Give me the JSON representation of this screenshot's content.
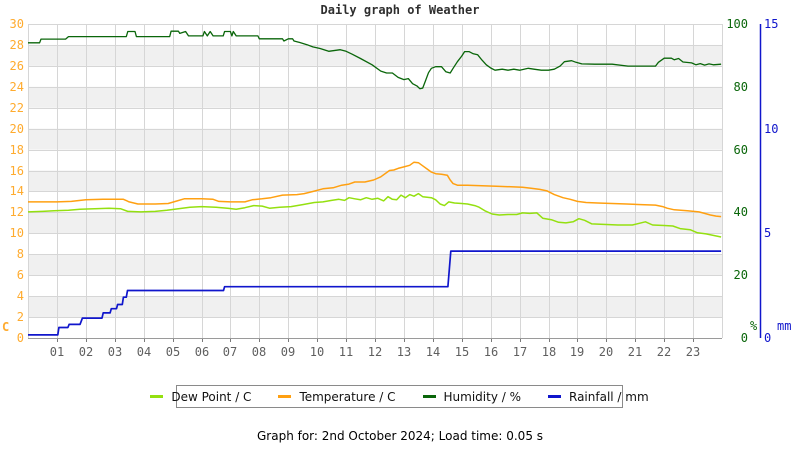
{
  "title": "Daily graph of Weather",
  "footer": {
    "caption": "Graph for: 2nd October 2024; Load time: 0.05 s"
  },
  "colors": {
    "dew_point": "#94e010",
    "temperature": "#ffa011",
    "humidity": "#0a660a",
    "rainfall": "#1016cc",
    "temp_axis_label": "#ffab2e",
    "x_axis_label": "#5f5f5f",
    "band": "#f0f0f0",
    "grid": "#d6d6d6",
    "axis_line": "#9a9a9a",
    "tick_mark": "#7a7a7a"
  },
  "axes": {
    "temperature": {
      "unit": "C",
      "min": 0,
      "max": 30,
      "ticks": [
        0,
        2,
        4,
        6,
        8,
        10,
        12,
        14,
        16,
        18,
        20,
        22,
        24,
        26,
        28,
        30
      ]
    },
    "humidity": {
      "unit": "%",
      "min": 0,
      "max": 100,
      "ticks": [
        0,
        20,
        40,
        60,
        80,
        100
      ]
    },
    "rainfall": {
      "unit": "mm",
      "min": 0,
      "max": 15,
      "ticks": [
        0,
        5,
        10,
        15
      ]
    },
    "time": {
      "ticks": [
        "01",
        "02",
        "03",
        "04",
        "05",
        "06",
        "07",
        "08",
        "09",
        "10",
        "11",
        "12",
        "13",
        "14",
        "15",
        "16",
        "17",
        "18",
        "19",
        "20",
        "21",
        "22",
        "23"
      ]
    }
  },
  "legend": {
    "items": [
      {
        "id": "dew_point",
        "label": "Dew Point / C"
      },
      {
        "id": "temperature",
        "label": "Temperature / C"
      },
      {
        "id": "humidity",
        "label": "Humidity / %"
      },
      {
        "id": "rainfall",
        "label": "Rainfall / mm"
      }
    ]
  },
  "chart_data": {
    "type": "line",
    "x_unit": "hour of day",
    "x_range": [
      0,
      24
    ],
    "grid": true,
    "legend_position": "bottom",
    "series": [
      {
        "id": "humidity",
        "name": "Humidity / %",
        "axis": "humidity",
        "points": [
          [
            0,
            94
          ],
          [
            0.4,
            94
          ],
          [
            0.45,
            95.2
          ],
          [
            1.3,
            95.2
          ],
          [
            1.4,
            96
          ],
          [
            3.4,
            96
          ],
          [
            3.45,
            97.6
          ],
          [
            3.7,
            97.6
          ],
          [
            3.75,
            96
          ],
          [
            4.9,
            96
          ],
          [
            4.95,
            97.7
          ],
          [
            5.2,
            97.7
          ],
          [
            5.25,
            97
          ],
          [
            5.45,
            97.6
          ],
          [
            5.55,
            96.2
          ],
          [
            6.05,
            96.2
          ],
          [
            6.1,
            97.6
          ],
          [
            6.2,
            96.2
          ],
          [
            6.3,
            97.6
          ],
          [
            6.4,
            96.2
          ],
          [
            6.75,
            96.2
          ],
          [
            6.8,
            97.6
          ],
          [
            7.0,
            97.6
          ],
          [
            7.05,
            96.2
          ],
          [
            7.1,
            97.6
          ],
          [
            7.2,
            96.2
          ],
          [
            7.95,
            96.2
          ],
          [
            8.0,
            95.3
          ],
          [
            8.8,
            95.3
          ],
          [
            8.85,
            94.6
          ],
          [
            9.0,
            95.3
          ],
          [
            9.15,
            95.3
          ],
          [
            9.2,
            94.6
          ],
          [
            9.4,
            94.1
          ],
          [
            9.65,
            93.4
          ],
          [
            9.85,
            92.7
          ],
          [
            10.1,
            92.2
          ],
          [
            10.4,
            91.3
          ],
          [
            10.8,
            91.8
          ],
          [
            11.0,
            91.3
          ],
          [
            11.2,
            90.4
          ],
          [
            11.5,
            89
          ],
          [
            11.9,
            87
          ],
          [
            12.2,
            85
          ],
          [
            12.4,
            84.4
          ],
          [
            12.6,
            84.4
          ],
          [
            12.8,
            83
          ],
          [
            13.0,
            82.3
          ],
          [
            13.15,
            82.6
          ],
          [
            13.3,
            81
          ],
          [
            13.45,
            80.3
          ],
          [
            13.55,
            79.4
          ],
          [
            13.65,
            79.6
          ],
          [
            13.75,
            82
          ],
          [
            13.85,
            84.5
          ],
          [
            13.95,
            85.9
          ],
          [
            14.1,
            86.4
          ],
          [
            14.3,
            86.4
          ],
          [
            14.45,
            84.8
          ],
          [
            14.6,
            84.4
          ],
          [
            14.7,
            85.9
          ],
          [
            14.85,
            88
          ],
          [
            15.0,
            89.8
          ],
          [
            15.1,
            91.2
          ],
          [
            15.25,
            91.2
          ],
          [
            15.4,
            90.5
          ],
          [
            15.55,
            90.2
          ],
          [
            15.7,
            88.5
          ],
          [
            15.85,
            87
          ],
          [
            16.0,
            86
          ],
          [
            16.15,
            85.3
          ],
          [
            16.4,
            85.6
          ],
          [
            16.6,
            85.3
          ],
          [
            16.8,
            85.6
          ],
          [
            17.0,
            85.3
          ],
          [
            17.3,
            85.9
          ],
          [
            17.5,
            85.6
          ],
          [
            17.75,
            85.3
          ],
          [
            18.0,
            85.3
          ],
          [
            18.2,
            85.6
          ],
          [
            18.4,
            86.6
          ],
          [
            18.55,
            88
          ],
          [
            18.8,
            88.3
          ],
          [
            18.95,
            87.8
          ],
          [
            19.15,
            87.3
          ],
          [
            19.6,
            87.2
          ],
          [
            20.2,
            87.2
          ],
          [
            20.75,
            86.6
          ],
          [
            21.3,
            86.6
          ],
          [
            21.7,
            86.6
          ],
          [
            21.8,
            87.8
          ],
          [
            22.0,
            89.1
          ],
          [
            22.25,
            89.1
          ],
          [
            22.35,
            88.6
          ],
          [
            22.5,
            89
          ],
          [
            22.65,
            87.9
          ],
          [
            22.95,
            87.6
          ],
          [
            23.1,
            87
          ],
          [
            23.25,
            87.4
          ],
          [
            23.4,
            86.9
          ],
          [
            23.55,
            87.3
          ],
          [
            23.7,
            87
          ],
          [
            23.97,
            87.2
          ]
        ]
      },
      {
        "id": "temperature",
        "name": "Temperature / C",
        "axis": "temperature",
        "points": [
          [
            0,
            13.0
          ],
          [
            0.5,
            13.0
          ],
          [
            1.0,
            13.0
          ],
          [
            1.5,
            13.05
          ],
          [
            2.0,
            13.2
          ],
          [
            2.6,
            13.25
          ],
          [
            3.3,
            13.25
          ],
          [
            3.5,
            13.0
          ],
          [
            3.8,
            12.8
          ],
          [
            4.4,
            12.8
          ],
          [
            4.85,
            12.85
          ],
          [
            5.1,
            13.05
          ],
          [
            5.4,
            13.3
          ],
          [
            6.0,
            13.3
          ],
          [
            6.4,
            13.25
          ],
          [
            6.6,
            13.05
          ],
          [
            7.0,
            13.0
          ],
          [
            7.5,
            13.0
          ],
          [
            7.75,
            13.2
          ],
          [
            8.1,
            13.3
          ],
          [
            8.4,
            13.4
          ],
          [
            8.8,
            13.65
          ],
          [
            9.3,
            13.7
          ],
          [
            9.55,
            13.8
          ],
          [
            9.85,
            14.0
          ],
          [
            10.2,
            14.25
          ],
          [
            10.55,
            14.35
          ],
          [
            10.85,
            14.6
          ],
          [
            11.1,
            14.7
          ],
          [
            11.3,
            14.9
          ],
          [
            11.65,
            14.9
          ],
          [
            11.95,
            15.1
          ],
          [
            12.2,
            15.4
          ],
          [
            12.5,
            16.0
          ],
          [
            12.65,
            16.05
          ],
          [
            12.8,
            16.2
          ],
          [
            13.0,
            16.35
          ],
          [
            13.2,
            16.5
          ],
          [
            13.35,
            16.8
          ],
          [
            13.5,
            16.75
          ],
          [
            13.65,
            16.45
          ],
          [
            13.8,
            16.15
          ],
          [
            13.95,
            15.85
          ],
          [
            14.1,
            15.7
          ],
          [
            14.3,
            15.65
          ],
          [
            14.5,
            15.55
          ],
          [
            14.6,
            15.1
          ],
          [
            14.7,
            14.75
          ],
          [
            14.85,
            14.6
          ],
          [
            15.2,
            14.6
          ],
          [
            15.7,
            14.55
          ],
          [
            16.2,
            14.5
          ],
          [
            16.7,
            14.45
          ],
          [
            17.1,
            14.4
          ],
          [
            17.4,
            14.3
          ],
          [
            17.7,
            14.2
          ],
          [
            17.95,
            14.05
          ],
          [
            18.2,
            13.7
          ],
          [
            18.5,
            13.4
          ],
          [
            18.75,
            13.25
          ],
          [
            19.0,
            13.05
          ],
          [
            19.3,
            12.95
          ],
          [
            19.7,
            12.9
          ],
          [
            20.2,
            12.85
          ],
          [
            20.7,
            12.8
          ],
          [
            21.2,
            12.75
          ],
          [
            21.7,
            12.7
          ],
          [
            21.95,
            12.55
          ],
          [
            22.1,
            12.4
          ],
          [
            22.35,
            12.25
          ],
          [
            22.8,
            12.15
          ],
          [
            23.2,
            12.05
          ],
          [
            23.4,
            11.9
          ],
          [
            23.6,
            11.75
          ],
          [
            23.8,
            11.65
          ],
          [
            23.97,
            11.6
          ]
        ]
      },
      {
        "id": "dew_point",
        "name": "Dew Point / C",
        "axis": "temperature",
        "points": [
          [
            0,
            12.05
          ],
          [
            0.5,
            12.1
          ],
          [
            0.9,
            12.15
          ],
          [
            1.4,
            12.2
          ],
          [
            1.8,
            12.3
          ],
          [
            2.3,
            12.35
          ],
          [
            2.8,
            12.4
          ],
          [
            3.2,
            12.35
          ],
          [
            3.45,
            12.1
          ],
          [
            3.9,
            12.05
          ],
          [
            4.4,
            12.1
          ],
          [
            4.8,
            12.2
          ],
          [
            5.2,
            12.35
          ],
          [
            5.6,
            12.5
          ],
          [
            6.0,
            12.55
          ],
          [
            6.5,
            12.5
          ],
          [
            6.9,
            12.4
          ],
          [
            7.2,
            12.3
          ],
          [
            7.5,
            12.45
          ],
          [
            7.8,
            12.65
          ],
          [
            8.1,
            12.6
          ],
          [
            8.35,
            12.4
          ],
          [
            8.7,
            12.5
          ],
          [
            9.1,
            12.55
          ],
          [
            9.5,
            12.75
          ],
          [
            9.9,
            12.95
          ],
          [
            10.2,
            13.0
          ],
          [
            10.5,
            13.15
          ],
          [
            10.75,
            13.25
          ],
          [
            10.95,
            13.15
          ],
          [
            11.1,
            13.4
          ],
          [
            11.3,
            13.3
          ],
          [
            11.5,
            13.2
          ],
          [
            11.7,
            13.4
          ],
          [
            11.9,
            13.25
          ],
          [
            12.1,
            13.35
          ],
          [
            12.3,
            13.1
          ],
          [
            12.45,
            13.5
          ],
          [
            12.6,
            13.25
          ],
          [
            12.75,
            13.2
          ],
          [
            12.9,
            13.65
          ],
          [
            13.05,
            13.4
          ],
          [
            13.2,
            13.7
          ],
          [
            13.35,
            13.55
          ],
          [
            13.5,
            13.8
          ],
          [
            13.65,
            13.5
          ],
          [
            13.8,
            13.45
          ],
          [
            13.95,
            13.4
          ],
          [
            14.1,
            13.2
          ],
          [
            14.25,
            12.8
          ],
          [
            14.4,
            12.65
          ],
          [
            14.55,
            13.0
          ],
          [
            14.75,
            12.9
          ],
          [
            15.0,
            12.85
          ],
          [
            15.2,
            12.8
          ],
          [
            15.45,
            12.65
          ],
          [
            15.6,
            12.5
          ],
          [
            15.8,
            12.15
          ],
          [
            16.05,
            11.85
          ],
          [
            16.3,
            11.75
          ],
          [
            16.6,
            11.8
          ],
          [
            16.9,
            11.8
          ],
          [
            17.1,
            11.95
          ],
          [
            17.35,
            11.9
          ],
          [
            17.6,
            11.95
          ],
          [
            17.8,
            11.45
          ],
          [
            18.1,
            11.3
          ],
          [
            18.35,
            11.05
          ],
          [
            18.6,
            11.0
          ],
          [
            18.85,
            11.1
          ],
          [
            19.05,
            11.4
          ],
          [
            19.25,
            11.25
          ],
          [
            19.5,
            10.9
          ],
          [
            19.9,
            10.85
          ],
          [
            20.4,
            10.8
          ],
          [
            20.9,
            10.8
          ],
          [
            21.35,
            11.1
          ],
          [
            21.6,
            10.8
          ],
          [
            22.0,
            10.75
          ],
          [
            22.3,
            10.7
          ],
          [
            22.55,
            10.45
          ],
          [
            22.9,
            10.35
          ],
          [
            23.15,
            10.05
          ],
          [
            23.45,
            9.95
          ],
          [
            23.7,
            9.8
          ],
          [
            23.97,
            9.65
          ]
        ]
      },
      {
        "id": "rainfall",
        "name": "Rainfall / mm",
        "axis": "rainfall",
        "points": [
          [
            0,
            0.15
          ],
          [
            1.03,
            0.15
          ],
          [
            1.07,
            0.5
          ],
          [
            1.38,
            0.5
          ],
          [
            1.42,
            0.65
          ],
          [
            1.8,
            0.65
          ],
          [
            1.84,
            0.8
          ],
          [
            1.88,
            0.95
          ],
          [
            2.56,
            0.95
          ],
          [
            2.6,
            1.2
          ],
          [
            2.84,
            1.2
          ],
          [
            2.88,
            1.4
          ],
          [
            3.06,
            1.4
          ],
          [
            3.1,
            1.6
          ],
          [
            3.26,
            1.6
          ],
          [
            3.3,
            1.95
          ],
          [
            3.4,
            1.95
          ],
          [
            3.44,
            2.27
          ],
          [
            6.76,
            2.27
          ],
          [
            6.8,
            2.45
          ],
          [
            14.52,
            2.45
          ],
          [
            14.62,
            4.15
          ],
          [
            23.97,
            4.15
          ]
        ]
      }
    ]
  }
}
